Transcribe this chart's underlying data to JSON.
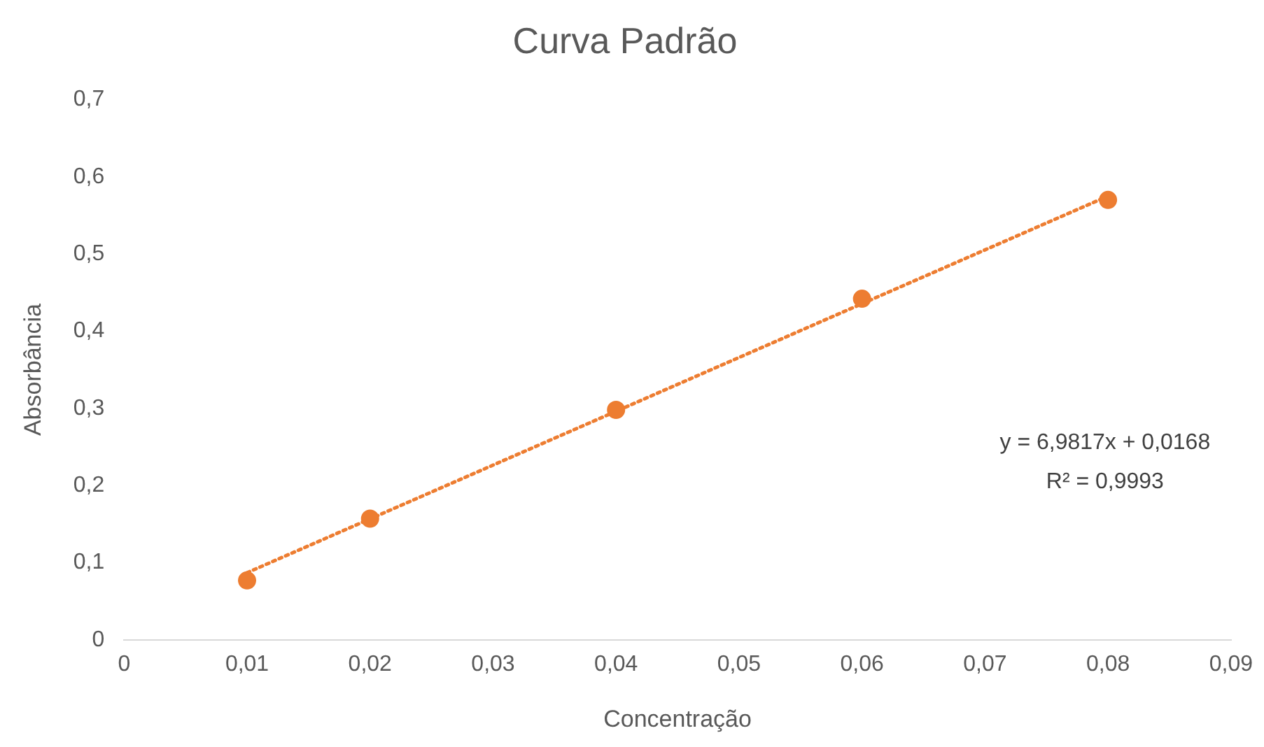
{
  "chart_data": {
    "type": "scatter",
    "title": "Curva Padrão",
    "xlabel": "Concentração",
    "ylabel": "Absorbância",
    "xlim": [
      0,
      0.09
    ],
    "xticks": [
      {
        "value": 0,
        "label": "0"
      },
      {
        "value": 0.01,
        "label": "0,01"
      },
      {
        "value": 0.02,
        "label": "0,02"
      },
      {
        "value": 0.03,
        "label": "0,03"
      },
      {
        "value": 0.04,
        "label": "0,04"
      },
      {
        "value": 0.05,
        "label": "0,05"
      },
      {
        "value": 0.06,
        "label": "0,06"
      },
      {
        "value": 0.07,
        "label": "0,07"
      },
      {
        "value": 0.08,
        "label": "0,08"
      },
      {
        "value": 0.09,
        "label": "0,09"
      }
    ],
    "ylim": [
      0,
      0.7
    ],
    "yticks": [
      {
        "value": 0,
        "label": "0"
      },
      {
        "value": 0.1,
        "label": "0,1"
      },
      {
        "value": 0.2,
        "label": "0,2"
      },
      {
        "value": 0.3,
        "label": "0,3"
      },
      {
        "value": 0.4,
        "label": "0,4"
      },
      {
        "value": 0.5,
        "label": "0,5"
      },
      {
        "value": 0.6,
        "label": "0,6"
      },
      {
        "value": 0.7,
        "label": "0,7"
      }
    ],
    "grid": false,
    "legend": false,
    "marker": "circle",
    "series": [
      {
        "type": "scatter",
        "color": "#ed7d31",
        "x": [
          0.01,
          0.02,
          0.04,
          0.06,
          0.08
        ],
        "values": [
          0.077,
          0.157,
          0.298,
          0.442,
          0.57
        ]
      },
      {
        "type": "line",
        "color": "#ed7d31",
        "x": [
          0.01,
          0.08
        ],
        "values": [
          0.087,
          0.575
        ],
        "line_style": "dotted",
        "marker": "none"
      }
    ],
    "annotations": [
      "y = 6,9817x + 0,0168",
      "R² = 0,9993"
    ]
  }
}
